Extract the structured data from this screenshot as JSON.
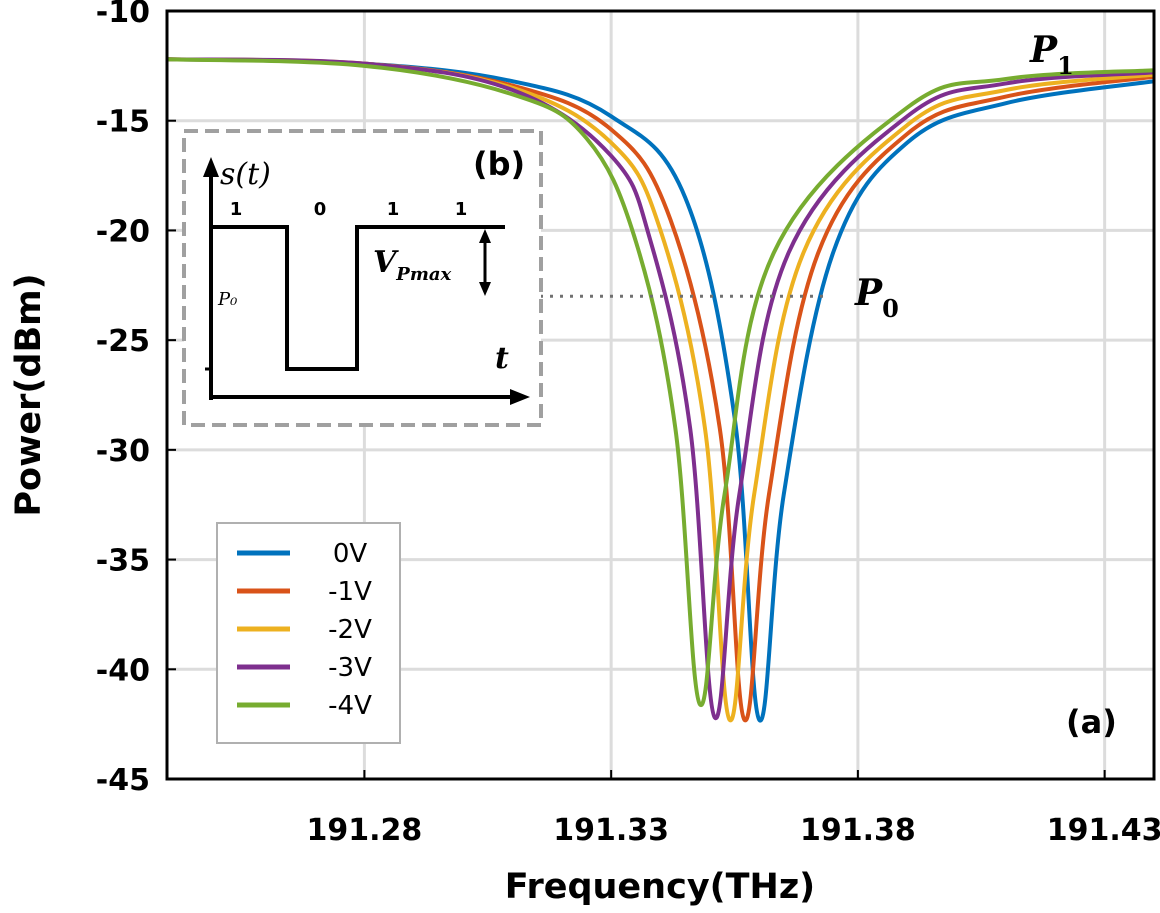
{
  "chart_data": {
    "type": "line",
    "xlabel": "Frequency(THz)",
    "ylabel": "Power(dBm)",
    "xlim": [
      191.24,
      191.44
    ],
    "ylim": [
      -45,
      -10
    ],
    "xticks": [
      "191.28",
      "191.33",
      "191.38",
      "191.43"
    ],
    "yticks": [
      "-10",
      "-15",
      "-20",
      "-25",
      "-30",
      "-35",
      "-40",
      "-45"
    ],
    "grid": true,
    "legend_position": "bottom-left",
    "series": [
      {
        "name": "0V",
        "color": "#0072BD",
        "x": [
          191.24,
          191.28,
          191.31,
          191.33,
          191.345,
          191.355,
          191.36,
          191.365,
          191.375,
          191.39,
          191.41,
          191.44
        ],
        "y": [
          -12.2,
          -12.4,
          -13.2,
          -14.8,
          -18.5,
          -28.5,
          -42.3,
          -32.0,
          -21.0,
          -16.0,
          -14.2,
          -13.2
        ]
      },
      {
        "name": "-1V",
        "color": "#D95319",
        "x": [
          191.24,
          191.28,
          191.31,
          191.33,
          191.342,
          191.352,
          191.357,
          191.362,
          191.372,
          191.39,
          191.41,
          191.44
        ],
        "y": [
          -12.2,
          -12.4,
          -13.4,
          -15.4,
          -19.5,
          -29.0,
          -42.3,
          -32.0,
          -21.0,
          -15.6,
          -13.9,
          -13.0
        ]
      },
      {
        "name": "-2V",
        "color": "#EDB120",
        "x": [
          191.24,
          191.28,
          191.31,
          191.33,
          191.34,
          191.349,
          191.354,
          191.359,
          191.369,
          191.39,
          191.41,
          191.44
        ],
        "y": [
          -12.2,
          -12.4,
          -13.5,
          -16.0,
          -20.0,
          -29.0,
          -42.3,
          -32.0,
          -21.0,
          -15.2,
          -13.6,
          -12.9
        ]
      },
      {
        "name": "-3V",
        "color": "#7E2F8E",
        "x": [
          191.24,
          191.28,
          191.31,
          191.33,
          191.338,
          191.346,
          191.351,
          191.356,
          191.366,
          191.39,
          191.41,
          191.44
        ],
        "y": [
          -12.2,
          -12.4,
          -13.6,
          -16.6,
          -20.5,
          -29.0,
          -42.2,
          -32.0,
          -21.0,
          -14.8,
          -13.3,
          -12.8
        ]
      },
      {
        "name": "-4V",
        "color": "#77AC30",
        "x": [
          191.24,
          191.28,
          191.31,
          191.325,
          191.335,
          191.343,
          191.348,
          191.353,
          191.363,
          191.39,
          191.41,
          191.44
        ],
        "y": [
          -12.2,
          -12.5,
          -13.8,
          -15.8,
          -20.5,
          -29.0,
          -41.6,
          -32.0,
          -21.0,
          -14.4,
          -13.1,
          -12.7
        ]
      }
    ],
    "annotations": {
      "p1_label": {
        "main": "P",
        "sub": "1"
      },
      "p0_label": {
        "main": "P",
        "sub": "0"
      },
      "p0_level": -23.0,
      "panel_a": "(a)"
    },
    "inset": {
      "panel_label": "(b)",
      "y_axis_label": "s(t)",
      "x_axis_label": "t",
      "bits": [
        "1",
        "0",
        "1",
        "1"
      ],
      "p0_label": "P₀",
      "vpmax_label": {
        "main": "V",
        "sub": "Pmax"
      }
    }
  }
}
